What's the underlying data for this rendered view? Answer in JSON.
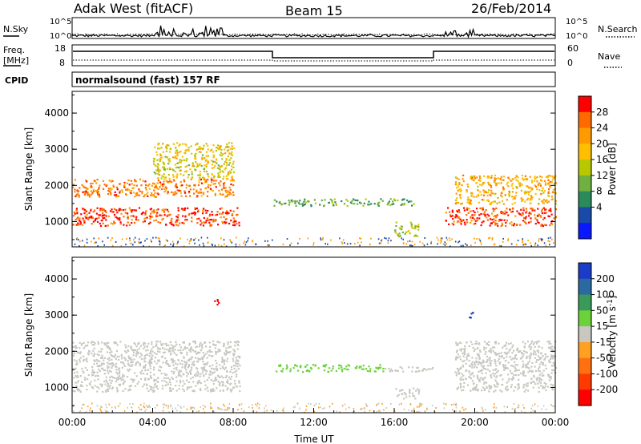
{
  "header": {
    "site": "Adak West (fitACF)",
    "beam": "Beam 15",
    "date": "26/Feb/2014"
  },
  "top_panels": {
    "nsky_label": "N.Sky",
    "nsearch_label": "N.Search",
    "freq_label": "Freq.",
    "freq_unit": "[MHz]",
    "nave_label": "Nave",
    "cpid_label": "CPID",
    "cpid_text": "normalsound (fast) 157 RF",
    "noise_ticks_left": [
      "10^5",
      "10^0"
    ],
    "noise_ticks_right": [
      "10^5",
      "10^0"
    ],
    "freq_ticks": [
      "18",
      "8"
    ],
    "nave_ticks": [
      "60",
      "0"
    ]
  },
  "colorbars": {
    "power": {
      "label": "Power [dB]",
      "ticks": [
        "28",
        "24",
        "20",
        "16",
        "12",
        "8",
        "4"
      ],
      "colors": [
        "#ff0000",
        "#ff6a00",
        "#ff9a00",
        "#ffbf00",
        "#b8c800",
        "#6fb040",
        "#2a8a5a",
        "#1a4aa8",
        "#0a18ff"
      ]
    },
    "velocity": {
      "label": "Velocity [m s",
      "label_sup": "-1",
      "label_end": "]",
      "ticks": [
        "200",
        "100",
        "50",
        "15",
        "-15",
        "-50",
        "-100",
        "-200"
      ],
      "colors": [
        "#1a3cc8",
        "#2a6aa0",
        "#3a9a5a",
        "#6cd23a",
        "#c8c8c0",
        "#ffa020",
        "#ff7010",
        "#ff3a00",
        "#ff0000"
      ]
    }
  },
  "chart_data": [
    {
      "type": "heatmap",
      "title": "Power",
      "ylabel": "Slant Range [km]",
      "yticks": [
        "1000",
        "2000",
        "3000",
        "4000"
      ],
      "ylim": [
        300,
        4600
      ],
      "xlim": [
        0,
        24
      ],
      "value_label": "Power [dB]",
      "regions": [
        {
          "name": "low band 00-08",
          "t": [
            0,
            8.3
          ],
          "range": [
            900,
            1400
          ],
          "power_db": 26
        },
        {
          "name": "upper band 00-08",
          "t": [
            0,
            8
          ],
          "range": [
            1700,
            2200
          ],
          "power_db": 22
        },
        {
          "name": "high arc 04-08",
          "t": [
            4,
            8
          ],
          "range": [
            2200,
            3200
          ],
          "power_db": 14
        },
        {
          "name": "midday band",
          "t": [
            10,
            17
          ],
          "range": [
            1450,
            1650
          ],
          "power_db": 8
        },
        {
          "name": "patch 16-17",
          "t": [
            16,
            17.2
          ],
          "range": [
            600,
            1000
          ],
          "power_db": 12
        },
        {
          "name": "low band 19-24",
          "t": [
            18.5,
            24
          ],
          "range": [
            900,
            1400
          ],
          "power_db": 26
        },
        {
          "name": "upper band 19-24",
          "t": [
            19,
            24
          ],
          "range": [
            1500,
            2300
          ],
          "power_db": 18
        }
      ]
    },
    {
      "type": "heatmap",
      "title": "Velocity",
      "ylabel": "Slant Range [km]",
      "yticks": [
        "1000",
        "2000",
        "3000",
        "4000"
      ],
      "ylim": [
        300,
        4600
      ],
      "xlim": [
        0,
        24
      ],
      "xlabel": "Time UT",
      "xticks": [
        "00:00",
        "04:00",
        "08:00",
        "12:00",
        "16:00",
        "20:00",
        "00:00"
      ],
      "value_label": "Velocity [m s-1]",
      "regions": [
        {
          "name": "ground scatter 00-08",
          "t": [
            0,
            8.3
          ],
          "range": [
            900,
            2300
          ],
          "velocity": 0
        },
        {
          "name": "midday band",
          "t": [
            10,
            15.5
          ],
          "range": [
            1450,
            1650
          ],
          "velocity": 40
        },
        {
          "name": "grey tail",
          "t": [
            15.5,
            18
          ],
          "range": [
            1450,
            1600
          ],
          "velocity": 0
        },
        {
          "name": "grey patch",
          "t": [
            16,
            17.2
          ],
          "range": [
            700,
            1000
          ],
          "velocity": 0
        },
        {
          "name": "evening echoes",
          "t": [
            19,
            24
          ],
          "range": [
            900,
            2300
          ],
          "velocity": 0
        },
        {
          "name": "blue blob",
          "t": [
            19.6,
            20
          ],
          "range": [
            2900,
            3100
          ],
          "velocity": 200
        },
        {
          "name": "red blob",
          "t": [
            7,
            7.3
          ],
          "range": [
            3250,
            3450
          ],
          "velocity": -200
        }
      ]
    }
  ]
}
